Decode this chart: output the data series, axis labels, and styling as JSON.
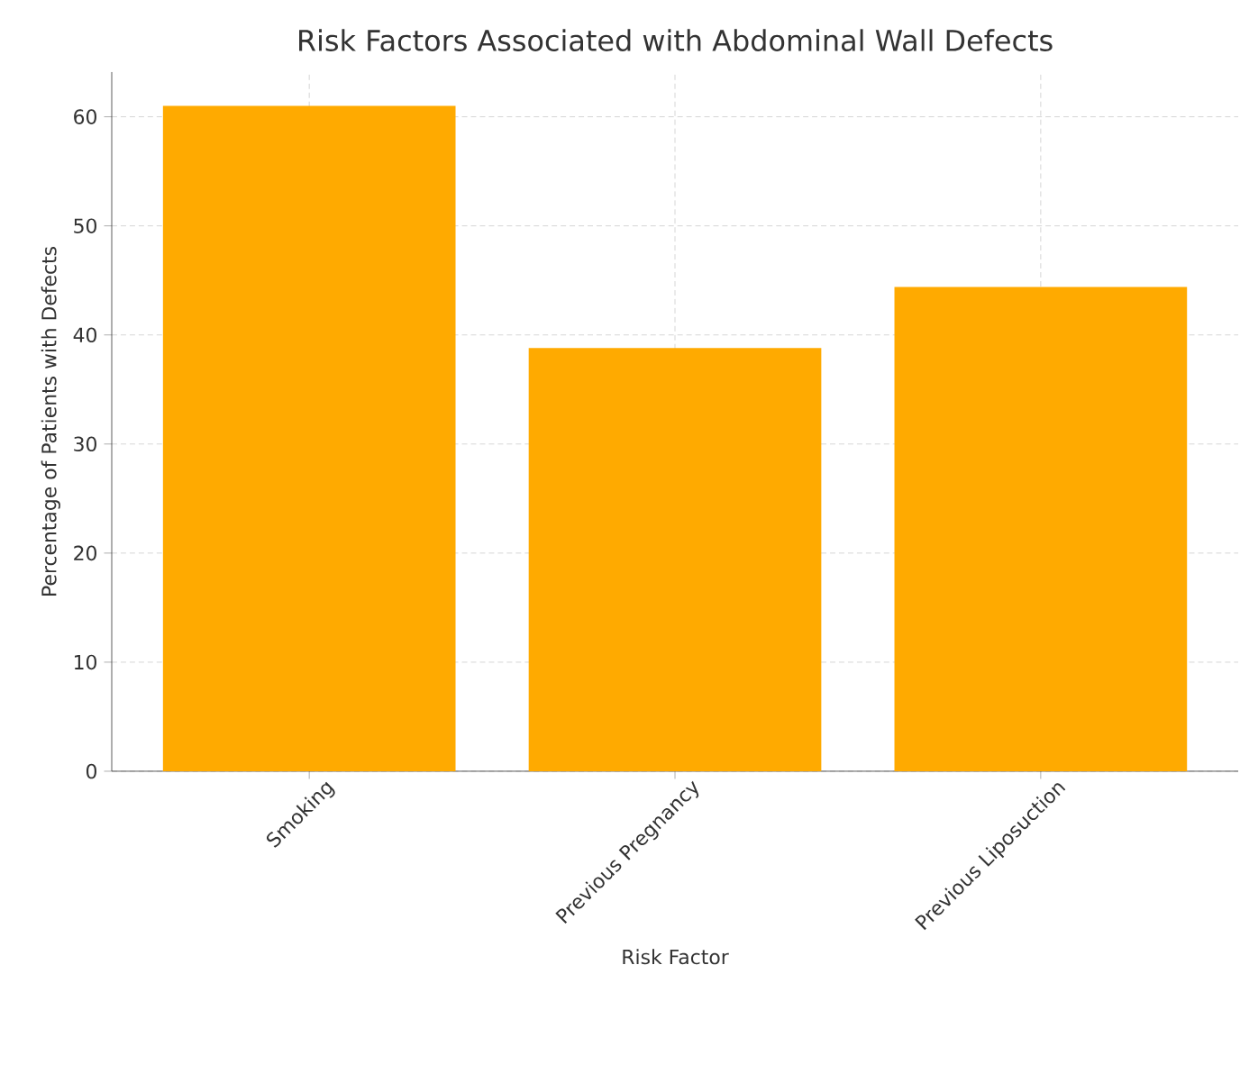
{
  "chart_data": {
    "type": "bar",
    "title": "Risk Factors Associated with Abdominal Wall Defects",
    "xlabel": "Risk Factor",
    "ylabel": "Percentage of Patients with Defects",
    "categories": [
      "Smoking",
      "Previous Pregnancy",
      "Previous Liposuction"
    ],
    "values": [
      61.0,
      38.8,
      44.4
    ],
    "color": "#ffaa00",
    "ylim": [
      0,
      64.1
    ],
    "yticks": [
      0,
      10,
      20,
      30,
      40,
      50,
      60
    ],
    "grid": true
  }
}
